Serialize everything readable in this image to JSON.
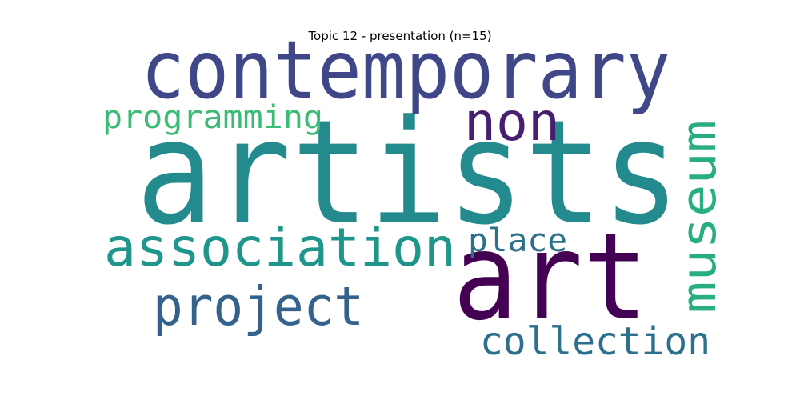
{
  "title": "Topic 12 - presentation (n=15)",
  "words": [
    {
      "text": "artists",
      "color": "#238a8d"
    },
    {
      "text": "contemporary",
      "color": "#404788"
    },
    {
      "text": "art",
      "color": "#440154"
    },
    {
      "text": "association",
      "color": "#1f968b"
    },
    {
      "text": "museum",
      "color": "#29af7f"
    },
    {
      "text": "project",
      "color": "#33638d"
    },
    {
      "text": "non",
      "color": "#481f70"
    },
    {
      "text": "programming",
      "color": "#3cbb75"
    },
    {
      "text": "place",
      "color": "#2d708e"
    },
    {
      "text": "collection",
      "color": "#2d708e"
    }
  ]
}
